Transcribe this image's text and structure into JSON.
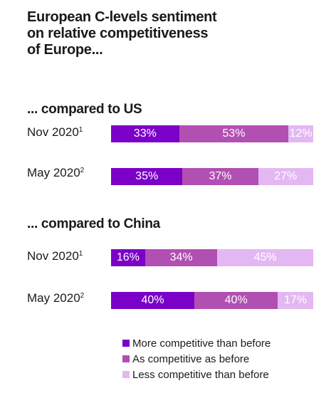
{
  "chart_data": {
    "type": "bar",
    "orientation": "horizontal",
    "stacked": true,
    "title_lines": [
      "European C-levels sentiment",
      "on relative competitiveness",
      "of Europe..."
    ],
    "groups": [
      {
        "title": "... compared to US",
        "rows": [
          {
            "label": "Nov 2020",
            "sup": "1",
            "values": [
              33,
              53,
              12
            ],
            "labels": [
              "33%",
              "53%",
              "12%"
            ]
          },
          {
            "label": "May 2020",
            "sup": "2",
            "values": [
              35,
              37,
              27
            ],
            "labels": [
              "35%",
              "37%",
              "27%"
            ]
          }
        ]
      },
      {
        "title": "... compared to China",
        "rows": [
          {
            "label": "Nov 2020",
            "sup": "1",
            "values": [
              16,
              34,
              45
            ],
            "labels": [
              "16%",
              "34%",
              "45%"
            ]
          },
          {
            "label": "May 2020",
            "sup": "2",
            "values": [
              40,
              40,
              17
            ],
            "labels": [
              "40%",
              "40%",
              "17%"
            ]
          }
        ]
      }
    ],
    "series": [
      {
        "name": "More competitive than before",
        "color": "#7B00C8"
      },
      {
        "name": "As competitive as before",
        "color": "#B24FB2"
      },
      {
        "name": "Less competitive than before",
        "color": "#E3B8F2"
      }
    ],
    "legend_position": "bottom-right"
  }
}
